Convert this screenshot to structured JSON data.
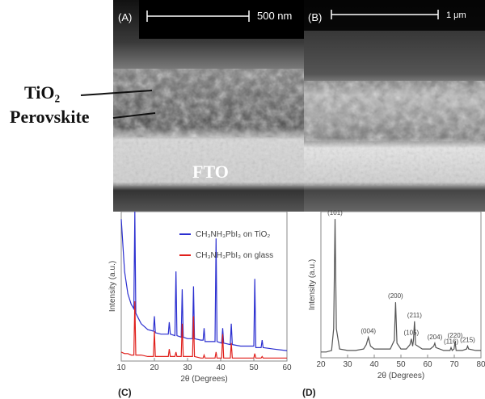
{
  "figure": {
    "panel_a": {
      "label": "(A)",
      "scale": "500 nm"
    },
    "panel_b": {
      "label": "(B)",
      "scale": "1 μm"
    },
    "layers": {
      "tio2": "TiO₂",
      "perovskite": "Perovskite",
      "fto": "FTO"
    },
    "panel_c_label": "(C)",
    "panel_d_label": "(D)"
  },
  "chart_data": [
    {
      "type": "line",
      "x_label": "2θ (Degrees)",
      "y_label": "Intensity (a.u.)",
      "xlim": [
        10,
        60
      ],
      "xticks": [
        10,
        20,
        30,
        40,
        50,
        60
      ],
      "ylim": [
        0,
        100
      ],
      "legend": "upper right",
      "x": [
        10,
        11,
        12,
        13,
        13.8,
        14.1,
        14.4,
        16,
        18,
        19.7,
        20,
        20.3,
        22,
        24.2,
        24.5,
        24.8,
        26.2,
        26.5,
        26.8,
        28.1,
        28.4,
        28.7,
        30,
        31.5,
        31.8,
        32.1,
        34,
        34.7,
        35,
        35.3,
        38.3,
        38.6,
        38.9,
        40.3,
        40.6,
        40.9,
        42.9,
        43.2,
        43.5,
        46,
        50,
        50.3,
        50.6,
        52.2,
        52.5,
        52.8,
        56,
        60
      ],
      "series": [
        {
          "name": "CH₃NH₃PbI₃ on TiO₂",
          "color": "#2b2fd0",
          "values": [
            95,
            60,
            45,
            38,
            35,
            100,
            32,
            25,
            21,
            20,
            30,
            19,
            18,
            18,
            26,
            18,
            17,
            60,
            17,
            16,
            48,
            16,
            15,
            15,
            50,
            15,
            14,
            14,
            22,
            13,
            13,
            82,
            13,
            12,
            22,
            12,
            11,
            25,
            11,
            10,
            10,
            55,
            9,
            9,
            14,
            9,
            8,
            7
          ]
        },
        {
          "name": "CH₃NH₃PbI₃ on glass",
          "color": "#e0201c",
          "values": [
            6,
            5,
            5,
            4,
            4,
            40,
            4,
            4,
            3,
            3,
            20,
            3,
            3,
            3,
            8,
            3,
            3,
            6,
            3,
            3,
            25,
            3,
            3,
            3,
            30,
            3,
            2,
            2,
            4,
            2,
            2,
            6,
            2,
            2,
            18,
            2,
            2,
            12,
            2,
            2,
            2,
            5,
            2,
            2,
            3,
            2,
            2,
            2
          ]
        }
      ]
    },
    {
      "type": "line",
      "x_label": "2θ (Degrees)",
      "y_label": "Intensity (a.u.)",
      "xlim": [
        20,
        80
      ],
      "xticks": [
        20,
        30,
        40,
        50,
        60,
        70,
        80
      ],
      "ylim": [
        0,
        100
      ],
      "x": [
        20,
        22,
        24,
        24.8,
        25.3,
        25.8,
        27,
        30,
        33,
        36,
        37,
        37.8,
        38.6,
        40,
        44,
        46,
        47.5,
        48,
        48.5,
        50,
        52,
        53.4,
        53.9,
        54.4,
        54.7,
        55.1,
        55.5,
        58,
        61,
        62.3,
        62.7,
        63.1,
        66,
        68.4,
        68.8,
        69.2,
        69.9,
        70.3,
        70.7,
        73,
        74.6,
        75,
        75.4,
        78,
        80
      ],
      "series": [
        {
          "name": null,
          "color": "#555555",
          "values": [
            4,
            4,
            5,
            20,
            95,
            20,
            6,
            5,
            5,
            6,
            9,
            14,
            8,
            6,
            6,
            6,
            12,
            38,
            10,
            6,
            6,
            9,
            13,
            8,
            12,
            25,
            9,
            6,
            6,
            8,
            10,
            7,
            5,
            5,
            7,
            5,
            6,
            11,
            5,
            5,
            6,
            8,
            6,
            5,
            5
          ]
        }
      ],
      "annotations": [
        {
          "text": "(101)",
          "x": 25.3
        },
        {
          "text": "(004)",
          "x": 37.8
        },
        {
          "text": "(200)",
          "x": 48
        },
        {
          "text": "(105)",
          "x": 53.9
        },
        {
          "text": "(211)",
          "x": 55.1
        },
        {
          "text": "(204)",
          "x": 62.7
        },
        {
          "text": "(116)",
          "x": 68.8
        },
        {
          "text": "(220)",
          "x": 70.3
        },
        {
          "text": "(215)",
          "x": 75
        }
      ]
    }
  ]
}
